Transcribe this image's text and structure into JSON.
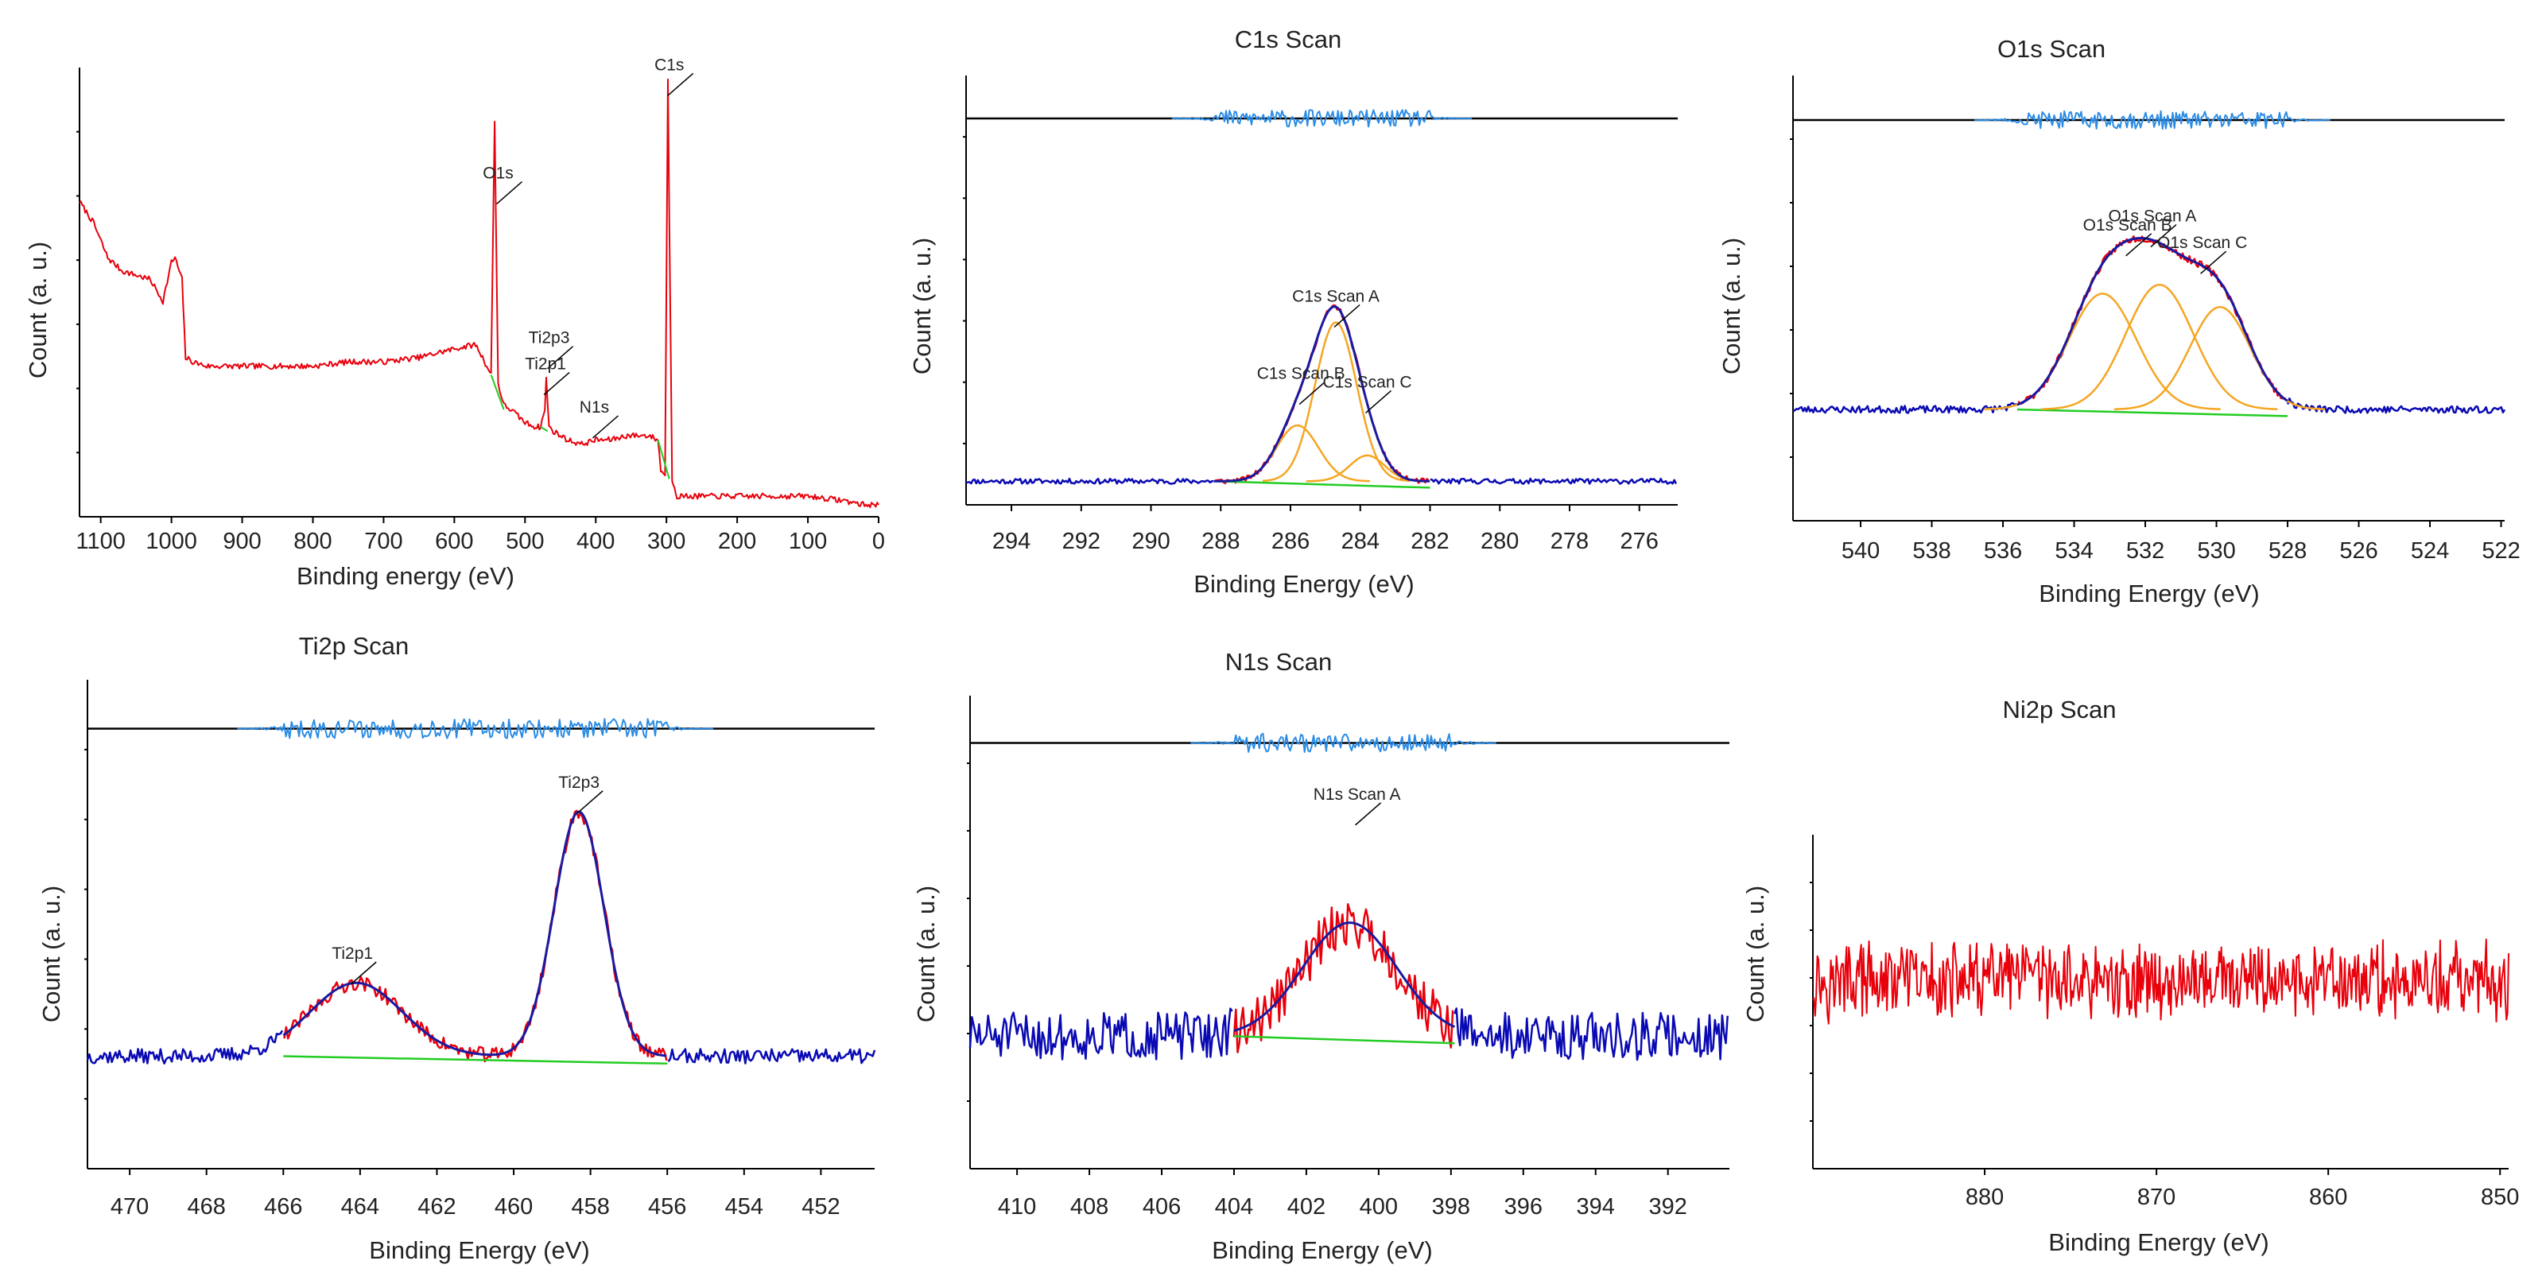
{
  "chart_data": [
    {
      "id": "survey",
      "type": "line",
      "title": "",
      "xlabel": "Binding energy (eV)",
      "ylabel": "Count (a. u.)",
      "xlim": [
        1130,
        0
      ],
      "xticks": [
        1100,
        1000,
        900,
        800,
        700,
        600,
        500,
        400,
        300,
        200,
        100,
        0
      ],
      "ylim": [
        0,
        100
      ],
      "background": [
        [
          1130,
          70
        ],
        [
          1110,
          65
        ],
        [
          1090,
          57
        ],
        [
          1070,
          54
        ],
        [
          1050,
          53
        ],
        [
          1030,
          52
        ],
        [
          1012,
          47
        ],
        [
          1000,
          56
        ],
        [
          995,
          57
        ],
        [
          985,
          52
        ],
        [
          980,
          34
        ],
        [
          970,
          33
        ],
        [
          950,
          32
        ],
        [
          900,
          32
        ],
        [
          850,
          32
        ],
        [
          800,
          32
        ],
        [
          750,
          33
        ],
        [
          700,
          33
        ],
        [
          650,
          34
        ],
        [
          600,
          36
        ],
        [
          570,
          37
        ],
        [
          560,
          34
        ],
        [
          548,
          30
        ],
        [
          543,
          89
        ],
        [
          538,
          28
        ],
        [
          530,
          23
        ],
        [
          520,
          22
        ],
        [
          500,
          19
        ],
        [
          485,
          18
        ],
        [
          478,
          18
        ],
        [
          472,
          22
        ],
        [
          470,
          29
        ],
        [
          466,
          18
        ],
        [
          460,
          17
        ],
        [
          440,
          15
        ],
        [
          420,
          14
        ],
        [
          400,
          15
        ],
        [
          380,
          15
        ],
        [
          355,
          16
        ],
        [
          325,
          16
        ],
        [
          312,
          15
        ],
        [
          308,
          8
        ],
        [
          302,
          7
        ],
        [
          298,
          98
        ],
        [
          292,
          6
        ],
        [
          285,
          2
        ],
        [
          270,
          2
        ],
        [
          250,
          2
        ],
        [
          200,
          2
        ],
        [
          150,
          2
        ],
        [
          100,
          2
        ],
        [
          50,
          1
        ],
        [
          20,
          0
        ],
        [
          0,
          0
        ]
      ],
      "annotations": [
        {
          "label": "C1s",
          "x": 296,
          "y": 97
        },
        {
          "label": "O1s",
          "x": 538,
          "y": 72
        },
        {
          "label": "Ti2p3",
          "x": 466,
          "y": 34
        },
        {
          "label": "Ti2p1",
          "x": 471,
          "y": 28
        },
        {
          "label": "N1s",
          "x": 402,
          "y": 18
        }
      ]
    },
    {
      "id": "c1s",
      "type": "line",
      "title": "C1s Scan",
      "xlabel": "Binding Energy (eV)",
      "ylabel": "Count (a. u.)",
      "xlim": [
        295.3,
        274.9
      ],
      "xticks": [
        294,
        292,
        290,
        288,
        286,
        284,
        282,
        280,
        278,
        276
      ],
      "ylim": [
        0,
        100
      ],
      "baseline": 5.5,
      "residual_axis_y": 90,
      "peaks": [
        {
          "name": "C1s Scan A",
          "center": 284.7,
          "height": 37,
          "sigma": 0.6
        },
        {
          "name": "C1s Scan B",
          "center": 285.8,
          "height": 13,
          "sigma": 0.6
        },
        {
          "name": "C1s Scan C",
          "center": 283.8,
          "height": 6,
          "sigma": 0.5
        }
      ],
      "fit_range": [
        288.2,
        282.0
      ],
      "annotations": [
        {
          "label": "C1s Scan A",
          "x": 284.7,
          "y": 44
        },
        {
          "label": "C1s Scan B",
          "x": 285.7,
          "y": 26
        },
        {
          "label": "C1s Scan C",
          "x": 283.8,
          "y": 24
        }
      ]
    },
    {
      "id": "o1s",
      "type": "line",
      "title": "O1s Scan",
      "xlabel": "Binding Energy (eV)",
      "ylabel": "Count (a. u.)",
      "xlim": [
        541.9,
        521.9
      ],
      "xticks": [
        540,
        538,
        536,
        534,
        532,
        530,
        528,
        526,
        524,
        522
      ],
      "ylim": [
        0,
        100
      ],
      "baseline": 25,
      "residual_axis_y": 90,
      "peaks": [
        {
          "name": "O1s Scan A",
          "center": 531.6,
          "height": 28,
          "sigma": 0.95
        },
        {
          "name": "O1s Scan B",
          "center": 533.2,
          "height": 26,
          "sigma": 0.95
        },
        {
          "name": "O1s Scan C",
          "center": 529.9,
          "height": 23,
          "sigma": 0.85
        }
      ],
      "fit_range": [
        535.6,
        528.0
      ],
      "annotations": [
        {
          "label": "O1s Scan A",
          "x": 531.8,
          "y": 64
        },
        {
          "label": "O1s Scan B",
          "x": 532.5,
          "y": 62
        },
        {
          "label": "O1s Scan C",
          "x": 530.4,
          "y": 58
        }
      ]
    },
    {
      "id": "ti2p",
      "type": "line",
      "title": "Ti2p Scan",
      "xlabel": "Binding Energy (eV)",
      "ylabel": "Count (a. u.)",
      "xlim": [
        471.1,
        450.6
      ],
      "xticks": [
        470,
        468,
        466,
        464,
        462,
        460,
        458,
        456,
        454,
        452
      ],
      "ylim": [
        0,
        100
      ],
      "baseline": 23,
      "residual_axis_y": 90,
      "peaks": [
        {
          "name": "Ti2p3",
          "center": 458.3,
          "height": 50,
          "sigma": 0.65
        },
        {
          "name": "Ti2p1",
          "center": 464.1,
          "height": 15,
          "sigma": 1.2
        }
      ],
      "fit_range": [
        466.0,
        456.0
      ],
      "annotations": [
        {
          "label": "Ti2p3",
          "x": 458.3,
          "y": 75
        },
        {
          "label": "Ti2p1",
          "x": 464.2,
          "y": 40
        }
      ]
    },
    {
      "id": "n1s",
      "type": "line",
      "title": "N1s Scan",
      "xlabel": "Binding Energy (eV)",
      "ylabel": "Count (a. u.)",
      "xlim": [
        411.3,
        390.3
      ],
      "xticks": [
        410,
        408,
        406,
        404,
        402,
        400,
        398,
        396,
        394,
        392
      ],
      "ylim": [
        0,
        100
      ],
      "baseline": 28,
      "residual_axis_y": 90,
      "peaks": [
        {
          "name": "N1s Scan A",
          "center": 400.8,
          "height": 24,
          "sigma": 1.3
        }
      ],
      "fit_range": [
        404.0,
        397.9
      ],
      "annotations": [
        {
          "label": "N1s Scan A",
          "x": 400.6,
          "y": 75
        }
      ]
    },
    {
      "id": "ni2p",
      "type": "line",
      "title": "Ni2p Scan",
      "xlabel": "Binding Energy (eV)",
      "ylabel": "Count (a. u.)",
      "xlim": [
        890,
        849.5
      ],
      "xticks": [
        880,
        870,
        860,
        850
      ],
      "ylim": [
        0,
        100
      ],
      "mean": 56,
      "noise_amplitude": 10,
      "annotations": []
    }
  ]
}
